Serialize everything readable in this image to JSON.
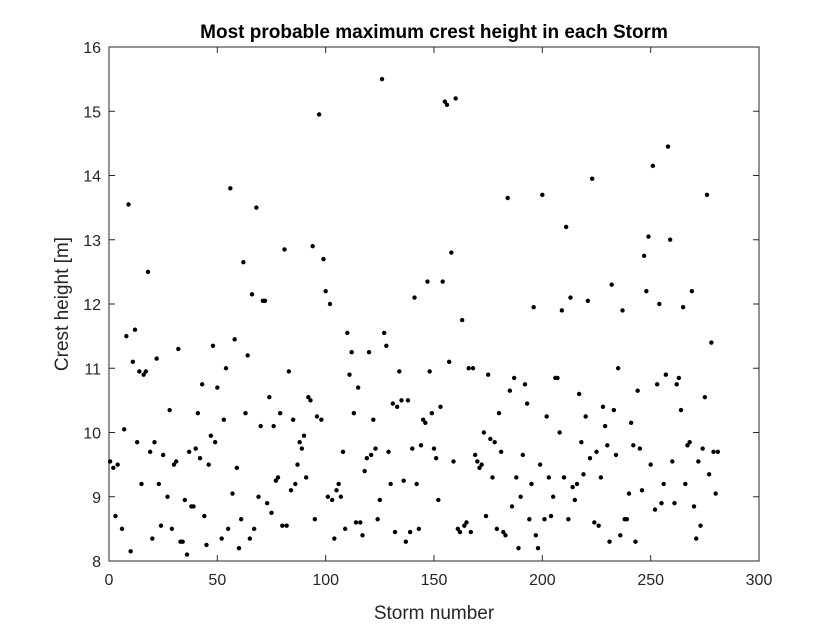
{
  "chart_data": {
    "type": "scatter",
    "title": "Most probable maximum crest height in each Storm",
    "xlabel": "Storm number",
    "ylabel": "Crest height [m]",
    "xlim": [
      0,
      300
    ],
    "ylim": [
      8,
      16
    ],
    "xticks": [
      0,
      50,
      100,
      150,
      200,
      250,
      300
    ],
    "yticks": [
      8,
      9,
      10,
      11,
      12,
      13,
      14,
      15,
      16
    ],
    "grid": false,
    "marker_color": "#000000",
    "points": [
      [
        0.5,
        9.55
      ],
      [
        2,
        9.45
      ],
      [
        3,
        8.7
      ],
      [
        4,
        9.5
      ],
      [
        6,
        8.5
      ],
      [
        7,
        10.05
      ],
      [
        8,
        11.5
      ],
      [
        9,
        13.55
      ],
      [
        10,
        8.15
      ],
      [
        11,
        11.1
      ],
      [
        12,
        11.6
      ],
      [
        13,
        9.85
      ],
      [
        14,
        10.95
      ],
      [
        15,
        9.2
      ],
      [
        16,
        10.9
      ],
      [
        17,
        10.95
      ],
      [
        18,
        12.5
      ],
      [
        19,
        9.7
      ],
      [
        20,
        8.35
      ],
      [
        21,
        9.85
      ],
      [
        22,
        11.15
      ],
      [
        23,
        9.2
      ],
      [
        24,
        8.55
      ],
      [
        25,
        9.65
      ],
      [
        27,
        9.0
      ],
      [
        28,
        10.35
      ],
      [
        29,
        8.5
      ],
      [
        30,
        9.5
      ],
      [
        31,
        9.55
      ],
      [
        32,
        11.3
      ],
      [
        33,
        8.3
      ],
      [
        34,
        8.3
      ],
      [
        35,
        8.95
      ],
      [
        36,
        8.1
      ],
      [
        37,
        9.7
      ],
      [
        38,
        8.85
      ],
      [
        39,
        8.85
      ],
      [
        40,
        9.75
      ],
      [
        41,
        10.3
      ],
      [
        42,
        9.6
      ],
      [
        43,
        10.75
      ],
      [
        44,
        8.7
      ],
      [
        45,
        8.25
      ],
      [
        46,
        9.5
      ],
      [
        47,
        9.95
      ],
      [
        48,
        11.35
      ],
      [
        49,
        9.85
      ],
      [
        50,
        10.7
      ],
      [
        52,
        8.35
      ],
      [
        53,
        10.2
      ],
      [
        54,
        11.0
      ],
      [
        55,
        8.5
      ],
      [
        56,
        13.8
      ],
      [
        57,
        9.05
      ],
      [
        58,
        11.45
      ],
      [
        59,
        9.45
      ],
      [
        60,
        8.2
      ],
      [
        61,
        8.65
      ],
      [
        62,
        12.65
      ],
      [
        63,
        10.3
      ],
      [
        64,
        11.2
      ],
      [
        65,
        8.35
      ],
      [
        66,
        12.15
      ],
      [
        67,
        8.5
      ],
      [
        68,
        13.5
      ],
      [
        69,
        9.0
      ],
      [
        70,
        10.1
      ],
      [
        71,
        12.05
      ],
      [
        72,
        12.05
      ],
      [
        73,
        8.9
      ],
      [
        74,
        10.55
      ],
      [
        75,
        8.75
      ],
      [
        76,
        10.1
      ],
      [
        77,
        9.25
      ],
      [
        78,
        9.3
      ],
      [
        79,
        10.3
      ],
      [
        80,
        8.55
      ],
      [
        81,
        12.85
      ],
      [
        82,
        8.55
      ],
      [
        83,
        10.95
      ],
      [
        84,
        9.1
      ],
      [
        85,
        10.2
      ],
      [
        86,
        9.2
      ],
      [
        87,
        9.5
      ],
      [
        88,
        9.85
      ],
      [
        89,
        9.75
      ],
      [
        90,
        9.95
      ],
      [
        91,
        9.3
      ],
      [
        92,
        10.55
      ],
      [
        93,
        10.5
      ],
      [
        94,
        12.9
      ],
      [
        95,
        8.65
      ],
      [
        96,
        10.25
      ],
      [
        97,
        14.95
      ],
      [
        98,
        10.2
      ],
      [
        99,
        12.7
      ],
      [
        100,
        12.2
      ],
      [
        101,
        9.0
      ],
      [
        102,
        12.0
      ],
      [
        103,
        8.95
      ],
      [
        104,
        8.35
      ],
      [
        105,
        9.1
      ],
      [
        106,
        9.2
      ],
      [
        107,
        9.0
      ],
      [
        108,
        9.7
      ],
      [
        109,
        8.5
      ],
      [
        110,
        11.55
      ],
      [
        111,
        10.9
      ],
      [
        112,
        11.25
      ],
      [
        113,
        10.3
      ],
      [
        114,
        8.6
      ],
      [
        115,
        10.7
      ],
      [
        116,
        8.6
      ],
      [
        117,
        8.4
      ],
      [
        118,
        9.4
      ],
      [
        119,
        9.6
      ],
      [
        120,
        11.25
      ],
      [
        121,
        9.65
      ],
      [
        122,
        10.2
      ],
      [
        123,
        9.75
      ],
      [
        124,
        8.65
      ],
      [
        125,
        8.95
      ],
      [
        126,
        15.5
      ],
      [
        127,
        11.55
      ],
      [
        128,
        11.35
      ],
      [
        129,
        9.7
      ],
      [
        130,
        9.2
      ],
      [
        131,
        10.45
      ],
      [
        132,
        8.45
      ],
      [
        133,
        10.4
      ],
      [
        134,
        10.95
      ],
      [
        135,
        10.5
      ],
      [
        136,
        9.25
      ],
      [
        137,
        8.3
      ],
      [
        138,
        10.5
      ],
      [
        139,
        8.45
      ],
      [
        140,
        9.75
      ],
      [
        141,
        12.1
      ],
      [
        142,
        9.2
      ],
      [
        143,
        8.5
      ],
      [
        144,
        9.8
      ],
      [
        145,
        10.2
      ],
      [
        146,
        10.15
      ],
      [
        147,
        12.35
      ],
      [
        148,
        10.95
      ],
      [
        149,
        10.3
      ],
      [
        150,
        9.75
      ],
      [
        151,
        9.6
      ],
      [
        152,
        8.95
      ],
      [
        153,
        10.4
      ],
      [
        154,
        12.35
      ],
      [
        155,
        15.15
      ],
      [
        156,
        15.1
      ],
      [
        157,
        11.1
      ],
      [
        158,
        12.8
      ],
      [
        159,
        9.55
      ],
      [
        160,
        15.2
      ],
      [
        161,
        8.5
      ],
      [
        162,
        8.45
      ],
      [
        163,
        11.75
      ],
      [
        164,
        8.55
      ],
      [
        165,
        8.6
      ],
      [
        166,
        11.0
      ],
      [
        167,
        8.45
      ],
      [
        168,
        11.0
      ],
      [
        169,
        9.65
      ],
      [
        170,
        9.55
      ],
      [
        171,
        9.45
      ],
      [
        172,
        9.5
      ],
      [
        173,
        10.0
      ],
      [
        174,
        8.7
      ],
      [
        175,
        10.9
      ],
      [
        176,
        9.9
      ],
      [
        177,
        9.3
      ],
      [
        178,
        9.85
      ],
      [
        179,
        8.5
      ],
      [
        180,
        10.3
      ],
      [
        181,
        9.7
      ],
      [
        182,
        8.45
      ],
      [
        183,
        8.4
      ],
      [
        184,
        13.65
      ],
      [
        185,
        10.65
      ],
      [
        186,
        8.85
      ],
      [
        187,
        10.85
      ],
      [
        188,
        9.3
      ],
      [
        189,
        8.2
      ],
      [
        190,
        9.0
      ],
      [
        191,
        9.65
      ],
      [
        192,
        10.75
      ],
      [
        193,
        10.45
      ],
      [
        194,
        8.65
      ],
      [
        195,
        9.2
      ],
      [
        196,
        11.95
      ],
      [
        197,
        8.4
      ],
      [
        198,
        8.2
      ],
      [
        199,
        9.5
      ],
      [
        200,
        13.7
      ],
      [
        201,
        8.65
      ],
      [
        202,
        10.25
      ],
      [
        203,
        9.3
      ],
      [
        204,
        8.7
      ],
      [
        205,
        9.0
      ],
      [
        206,
        10.85
      ],
      [
        207,
        10.85
      ],
      [
        208,
        10.0
      ],
      [
        209,
        11.9
      ],
      [
        210,
        9.3
      ],
      [
        211,
        13.2
      ],
      [
        212,
        8.65
      ],
      [
        213,
        12.1
      ],
      [
        214,
        9.15
      ],
      [
        215,
        8.95
      ],
      [
        216,
        9.2
      ],
      [
        217,
        10.6
      ],
      [
        218,
        9.85
      ],
      [
        219,
        9.35
      ],
      [
        220,
        10.25
      ],
      [
        221,
        12.05
      ],
      [
        222,
        9.6
      ],
      [
        223,
        13.95
      ],
      [
        224,
        8.6
      ],
      [
        225,
        9.7
      ],
      [
        226,
        8.55
      ],
      [
        227,
        9.3
      ],
      [
        228,
        10.4
      ],
      [
        229,
        10.1
      ],
      [
        230,
        9.8
      ],
      [
        231,
        8.3
      ],
      [
        232,
        12.3
      ],
      [
        233,
        10.35
      ],
      [
        234,
        9.65
      ],
      [
        235,
        11.0
      ],
      [
        236,
        8.4
      ],
      [
        237,
        11.9
      ],
      [
        238,
        8.65
      ],
      [
        239,
        8.65
      ],
      [
        240,
        9.05
      ],
      [
        241,
        10.15
      ],
      [
        242,
        9.8
      ],
      [
        243,
        8.3
      ],
      [
        244,
        10.65
      ],
      [
        245,
        9.75
      ],
      [
        246,
        9.1
      ],
      [
        247,
        12.75
      ],
      [
        248,
        12.2
      ],
      [
        249,
        13.05
      ],
      [
        250,
        9.5
      ],
      [
        251,
        14.15
      ],
      [
        252,
        8.8
      ],
      [
        253,
        10.75
      ],
      [
        254,
        12.0
      ],
      [
        255,
        8.9
      ],
      [
        256,
        9.2
      ],
      [
        257,
        10.9
      ],
      [
        258,
        14.45
      ],
      [
        259,
        13.0
      ],
      [
        260,
        9.55
      ],
      [
        261,
        8.9
      ],
      [
        262,
        10.75
      ],
      [
        263,
        10.85
      ],
      [
        264,
        10.35
      ],
      [
        265,
        11.95
      ],
      [
        266,
        9.2
      ],
      [
        267,
        9.8
      ],
      [
        268,
        9.85
      ],
      [
        269,
        12.2
      ],
      [
        270,
        8.85
      ],
      [
        271,
        8.35
      ],
      [
        272,
        9.55
      ],
      [
        273,
        8.55
      ],
      [
        274,
        9.75
      ],
      [
        275,
        10.55
      ],
      [
        276,
        13.7
      ],
      [
        277,
        9.35
      ],
      [
        278,
        11.4
      ],
      [
        279,
        9.7
      ],
      [
        280,
        9.05
      ],
      [
        281,
        9.7
      ]
    ]
  }
}
